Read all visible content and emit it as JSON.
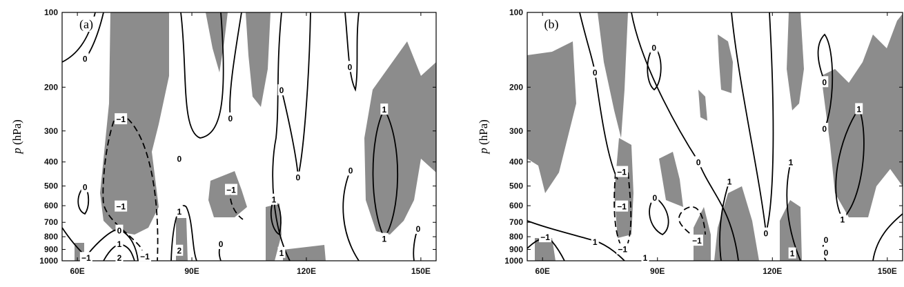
{
  "chart_data": [
    {
      "type": "contour",
      "panel_label": "(a)",
      "ylabel_var": "p",
      "ylabel_unit": "(hPa)",
      "xlim": [
        56,
        154
      ],
      "xticks": [
        {
          "value": 60,
          "label": "60E"
        },
        {
          "value": 90,
          "label": "90E"
        },
        {
          "value": 120,
          "label": "120E"
        },
        {
          "value": 150,
          "label": "150E"
        }
      ],
      "ylim": [
        1000,
        100
      ],
      "y_scale": "log",
      "yticks": [
        100,
        200,
        300,
        400,
        500,
        600,
        700,
        800,
        900,
        1000
      ],
      "shade_color": "#8c8c8c",
      "contour_labels": [
        {
          "text": "0",
          "lon": 62.0,
          "p": 153
        },
        {
          "text": "−1",
          "lon": 71.4,
          "p": 268
        },
        {
          "text": "0",
          "lon": 100.1,
          "p": 266
        },
        {
          "text": "0",
          "lon": 113.5,
          "p": 205
        },
        {
          "text": "0",
          "lon": 131.4,
          "p": 165
        },
        {
          "text": "1",
          "lon": 140.4,
          "p": 245
        },
        {
          "text": "0",
          "lon": 86.7,
          "p": 387
        },
        {
          "text": "0",
          "lon": 117.8,
          "p": 460
        },
        {
          "text": "0",
          "lon": 131.6,
          "p": 431
        },
        {
          "text": "0",
          "lon": 62.0,
          "p": 503
        },
        {
          "text": "−1",
          "lon": 100.3,
          "p": 516
        },
        {
          "text": "−1",
          "lon": 71.4,
          "p": 602
        },
        {
          "text": "1",
          "lon": 86.7,
          "p": 630
        },
        {
          "text": "1",
          "lon": 111.5,
          "p": 565
        },
        {
          "text": "0",
          "lon": 71.0,
          "p": 753
        },
        {
          "text": "1",
          "lon": 71.0,
          "p": 852
        },
        {
          "text": "0",
          "lon": 97.6,
          "p": 852
        },
        {
          "text": "1",
          "lon": 140.4,
          "p": 813
        },
        {
          "text": "0",
          "lon": 149.3,
          "p": 740
        },
        {
          "text": "2",
          "lon": 71.0,
          "p": 967
        },
        {
          "text": "−1",
          "lon": 77.7,
          "p": 955
        },
        {
          "text": "2",
          "lon": 86.7,
          "p": 907
        },
        {
          "text": "1",
          "lon": 113.5,
          "p": 925
        },
        {
          "text": "−1",
          "lon": 62.3,
          "p": 970
        }
      ]
    },
    {
      "type": "contour",
      "panel_label": "(b)",
      "ylabel_var": "p",
      "ylabel_unit": "(hPa)",
      "xlim": [
        56,
        154
      ],
      "xticks": [
        {
          "value": 60,
          "label": "60E"
        },
        {
          "value": 90,
          "label": "90E"
        },
        {
          "value": 120,
          "label": "120E"
        },
        {
          "value": 150,
          "label": "150E"
        }
      ],
      "ylim": [
        1000,
        100
      ],
      "y_scale": "log",
      "yticks": [
        100,
        200,
        300,
        400,
        500,
        600,
        700,
        800,
        900,
        1000
      ],
      "shade_color": "#8c8c8c",
      "contour_labels": [
        {
          "text": "0",
          "lon": 89.1,
          "p": 138
        },
        {
          "text": "0",
          "lon": 73.7,
          "p": 174
        },
        {
          "text": "0",
          "lon": 133.6,
          "p": 190
        },
        {
          "text": "1",
          "lon": 142.6,
          "p": 244
        },
        {
          "text": "0",
          "lon": 133.6,
          "p": 293
        },
        {
          "text": "0",
          "lon": 100.7,
          "p": 399
        },
        {
          "text": "−1",
          "lon": 80.7,
          "p": 437
        },
        {
          "text": "1",
          "lon": 124.8,
          "p": 399
        },
        {
          "text": "1",
          "lon": 108.8,
          "p": 477
        },
        {
          "text": "−1",
          "lon": 80.7,
          "p": 602
        },
        {
          "text": "0",
          "lon": 89.3,
          "p": 556
        },
        {
          "text": "1",
          "lon": 138.3,
          "p": 680
        },
        {
          "text": "−1",
          "lon": 60.7,
          "p": 800
        },
        {
          "text": "1",
          "lon": 73.7,
          "p": 837
        },
        {
          "text": "−1",
          "lon": 100.3,
          "p": 826
        },
        {
          "text": "−1",
          "lon": 80.9,
          "p": 895
        },
        {
          "text": "0",
          "lon": 118.3,
          "p": 773
        },
        {
          "text": "0",
          "lon": 134.0,
          "p": 820
        },
        {
          "text": "0",
          "lon": 134.0,
          "p": 924
        },
        {
          "text": "1",
          "lon": 125.2,
          "p": 930
        },
        {
          "text": "1",
          "lon": 86.8,
          "p": 967
        }
      ]
    }
  ]
}
